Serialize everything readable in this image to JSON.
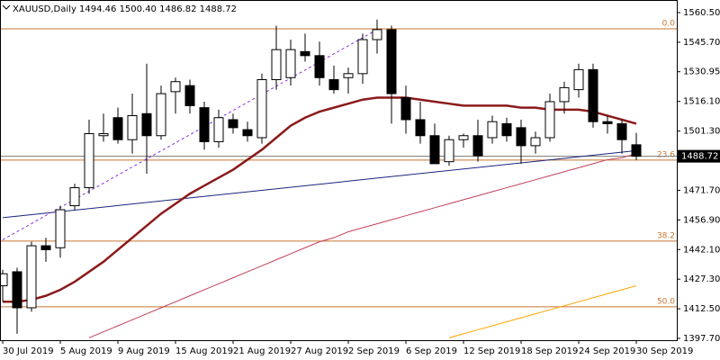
{
  "chart_data": {
    "type": "candlestick",
    "title": "XAUUSD,Daily  1494.46 1500.40 1486.82 1488.72",
    "categories": [
      "30 Jul 2019",
      null,
      null,
      null,
      "5 Aug 2019",
      null,
      null,
      null,
      "9 Aug 2019",
      null,
      null,
      null,
      "15 Aug 2019",
      null,
      null,
      null,
      "21 Aug 2019",
      null,
      null,
      null,
      "27 Aug 2019",
      null,
      null,
      null,
      "2 Sep 2019",
      null,
      null,
      null,
      "6 Sep 2019",
      null,
      null,
      null,
      "12 Sep 2019",
      null,
      null,
      null,
      "18 Sep 2019",
      null,
      null,
      null,
      "24 Sep 2019",
      null,
      null,
      null,
      "30 Sep 2019"
    ],
    "open": [
      1424,
      1431,
      1413,
      1444,
      1443,
      1464,
      1473,
      1499,
      1508,
      1497,
      1510,
      1499,
      1521,
      1524,
      1513,
      1496,
      1507,
      1502,
      1498,
      1527,
      1528,
      1541,
      1539,
      1527,
      1528,
      1530,
      1547,
      1552,
      1518,
      1507,
      1499,
      1486,
      1497,
      1499,
      1498,
      1505,
      1503,
      1494,
      1498,
      1516,
      1522,
      1532,
      1506,
      1505,
      1494.46
    ],
    "high": [
      1432,
      1433,
      1446,
      1448,
      1464,
      1475,
      1507,
      1510,
      1513,
      1520,
      1535,
      1524,
      1528,
      1527,
      1516,
      1512,
      1510,
      1506,
      1530,
      1554,
      1547,
      1550,
      1546,
      1534,
      1533,
      1550,
      1557,
      1554,
      1524,
      1516,
      1505,
      1499,
      1500,
      1507,
      1509,
      1508,
      1507,
      1501,
      1520,
      1526,
      1535,
      1535,
      1509,
      1507,
      1500.4
    ],
    "low": [
      1416,
      1400,
      1411,
      1436,
      1438,
      1462,
      1470,
      1496,
      1495,
      1490,
      1480,
      1497,
      1510,
      1510,
      1492,
      1493,
      1500,
      1496,
      1495,
      1522,
      1524,
      1536,
      1524,
      1520,
      1520,
      1525,
      1540,
      1505,
      1500,
      1495,
      1485,
      1484,
      1493,
      1486,
      1495,
      1496,
      1485,
      1490,
      1496,
      1510,
      1518,
      1503,
      1500,
      1490,
      1486.82
    ],
    "close": [
      1430,
      1413,
      1444,
      1442,
      1462,
      1473,
      1500,
      1500,
      1497,
      1509,
      1499,
      1520,
      1526,
      1514,
      1496,
      1508,
      1503,
      1499,
      1527,
      1542,
      1542,
      1539,
      1528,
      1522,
      1530,
      1547,
      1552,
      1520,
      1507,
      1499,
      1485,
      1497,
      1499,
      1489,
      1506,
      1499,
      1494,
      1498,
      1516,
      1523,
      1532,
      1506,
      1505,
      1497,
      1488.72
    ],
    "bull_color": "#ffffff",
    "bear_color": "#000000",
    "series": [
      {
        "color": "#8b1a1a",
        "width": 2.5,
        "values": [
          1416,
          1416,
          1417,
          1419,
          1422,
          1426,
          1431,
          1436,
          1442,
          1448,
          1454,
          1460,
          1465,
          1470,
          1474,
          1478,
          1482,
          1487,
          1492,
          1498,
          1504,
          1508,
          1511,
          1513,
          1515,
          1517,
          1518,
          1518,
          1518,
          1517,
          1516,
          1515,
          1514,
          1514,
          1514,
          1514,
          1513,
          1513,
          1512,
          1512,
          1512,
          1511,
          1509,
          1507,
          1505
        ]
      },
      {
        "color": "#c0405a",
        "width": 1,
        "values": [
          null,
          null,
          null,
          null,
          null,
          null,
          1398,
          1401,
          1404,
          1407,
          1410,
          1413,
          1416,
          1419,
          1422,
          1425,
          1428,
          1431,
          1434,
          1437,
          1440,
          1443,
          1446,
          1448,
          1451,
          1453,
          1455,
          1457,
          1459,
          1461,
          1463,
          1465,
          1467,
          1469,
          1471,
          1473,
          1475,
          1477,
          1479,
          1481,
          1483,
          1485,
          1487,
          1488,
          1490
        ]
      },
      {
        "color": "#ffa500",
        "width": 1,
        "values": [
          null,
          null,
          null,
          null,
          null,
          null,
          null,
          null,
          null,
          null,
          null,
          null,
          null,
          null,
          null,
          null,
          null,
          null,
          null,
          null,
          null,
          null,
          null,
          null,
          null,
          null,
          null,
          null,
          null,
          null,
          null,
          1398,
          1400,
          1402,
          1404,
          1406,
          1408,
          1410,
          1412,
          1414,
          1416,
          1418,
          1420,
          1422,
          1424
        ]
      }
    ],
    "trendlines": [
      {
        "color": "#1a237e",
        "dashed": false,
        "points": [
          [
            0,
            1458
          ],
          [
            44,
            1491.5
          ]
        ]
      },
      {
        "color": "#8a2be2",
        "dashed": true,
        "points": [
          [
            0,
            1447
          ],
          [
            26,
            1552
          ]
        ]
      }
    ],
    "fib_levels": [
      {
        "label": "0.0",
        "value": 1552.4
      },
      {
        "label": "23.6",
        "value": 1486.8
      },
      {
        "label": "38.2",
        "value": 1446.3
      },
      {
        "label": "50.0",
        "value": 1413.5
      }
    ],
    "fib_color": "#c87533",
    "current_price": 1488.72,
    "ylim": [
      1396.8,
      1566.8
    ],
    "yticks": [
      {
        "value": 1397.7,
        "label": "1397.70"
      },
      {
        "value": 1412.5,
        "label": "1412.50"
      },
      {
        "value": 1427.3,
        "label": "1427.30"
      },
      {
        "value": 1442.1,
        "label": "1442.10"
      },
      {
        "value": 1456.9,
        "label": "1456.90"
      },
      {
        "value": 1471.7,
        "label": "1471.70"
      },
      {
        "value": 1501.3,
        "label": "1501.30"
      },
      {
        "value": 1516.1,
        "label": "1516.10"
      },
      {
        "value": 1530.95,
        "label": "1530.95"
      },
      {
        "value": 1545.7,
        "label": "1545.70"
      },
      {
        "value": 1560.5,
        "label": "1560.50"
      }
    ]
  }
}
